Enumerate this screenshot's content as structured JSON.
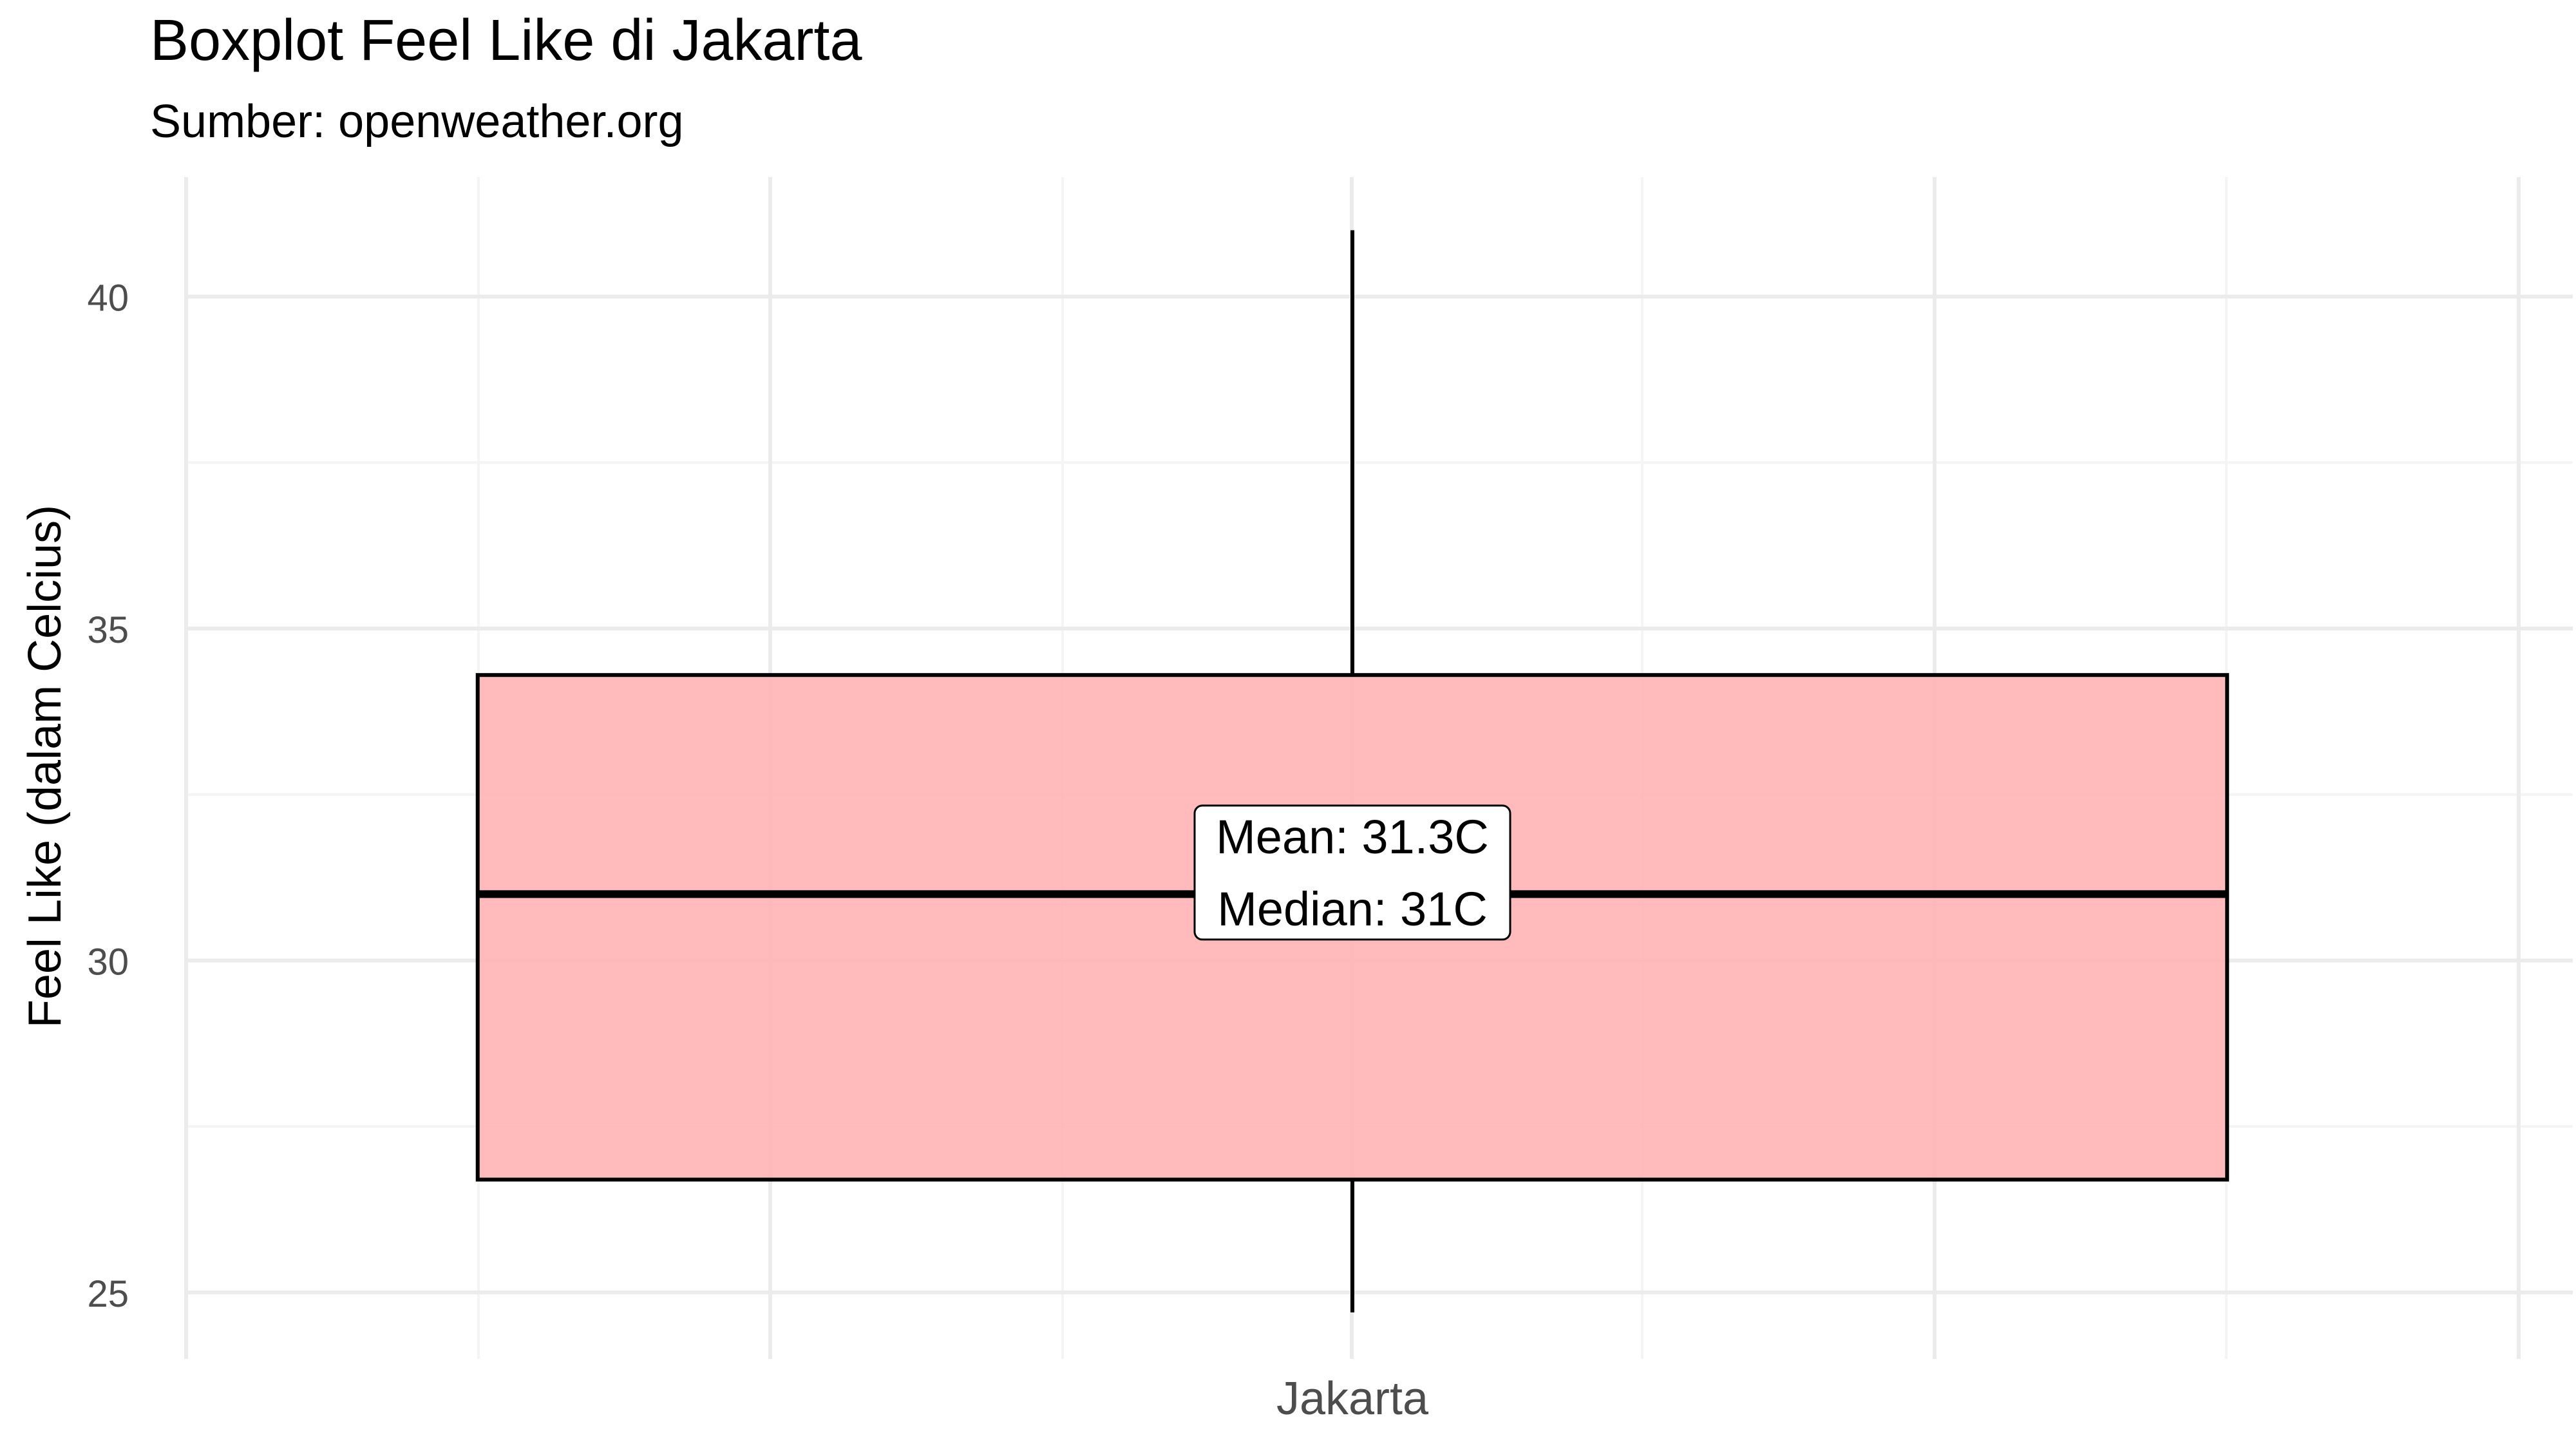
{
  "chart_data": {
    "type": "boxplot",
    "title": "Boxplot Feel Like di Jakarta",
    "subtitle": "Sumber: openweather.org",
    "xlabel": "",
    "ylabel": "Feel Like (dalam Celcius)",
    "categories": [
      "Jakarta"
    ],
    "ylim": [
      24,
      41.8
    ],
    "yticks": [
      25,
      30,
      35,
      40
    ],
    "grid": true,
    "boxes": [
      {
        "category": "Jakarta",
        "whisker_low": 24.7,
        "q1": 26.7,
        "median": 31,
        "q3": 34.3,
        "whisker_high": 41,
        "mean": 31.3
      }
    ],
    "annotation": {
      "line1": "Mean: 31.3C",
      "line2": "Median: 31C"
    },
    "colors": {
      "box_fill": "#ffb3b5",
      "box_stroke": "#000000",
      "grid_major": "#ebebeb",
      "grid_minor": "#f4f4f4",
      "tick_text": "#4d4d4d"
    }
  }
}
